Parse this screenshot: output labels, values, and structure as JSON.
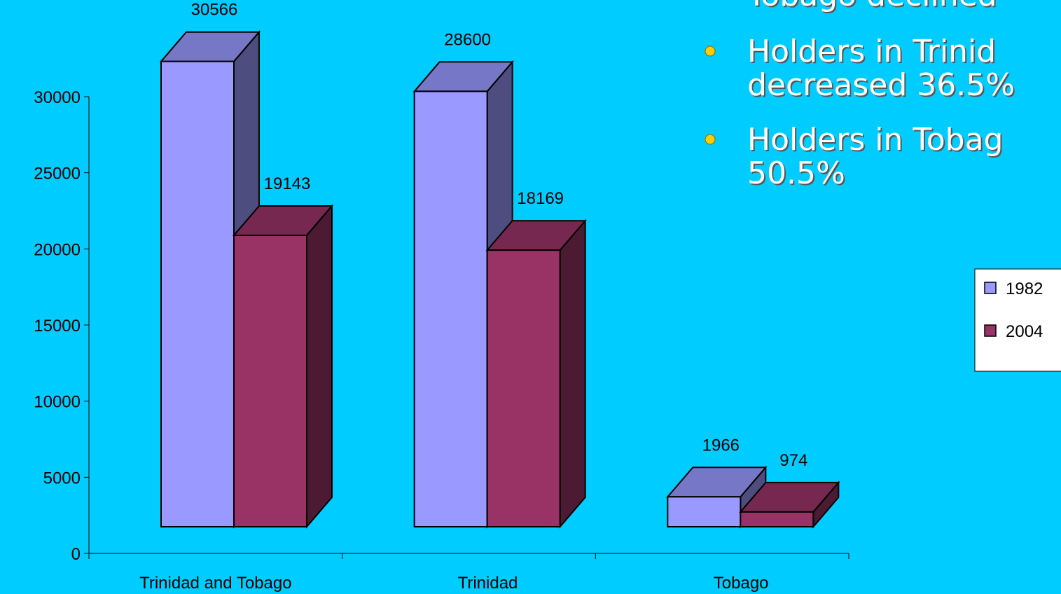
{
  "chart_data": {
    "type": "bar3d",
    "categories": [
      "Trinidad and Tobago",
      "Trinidad",
      "Tobago"
    ],
    "series": [
      {
        "name": "1982",
        "color": "#9999ff",
        "values": [
          30566,
          28600,
          1966
        ]
      },
      {
        "name": "2004",
        "color": "#993366",
        "values": [
          19143,
          18169,
          974
        ]
      }
    ],
    "ylim": [
      0,
      30000
    ],
    "yticks": [
      0,
      5000,
      10000,
      15000,
      20000,
      25000,
      30000
    ]
  },
  "continued": "Tobago declined",
  "bullets": [
    [
      "Holders in Trinid",
      "decreased 36.5%"
    ],
    [
      "Holders in Tobag",
      "50.5%"
    ]
  ]
}
